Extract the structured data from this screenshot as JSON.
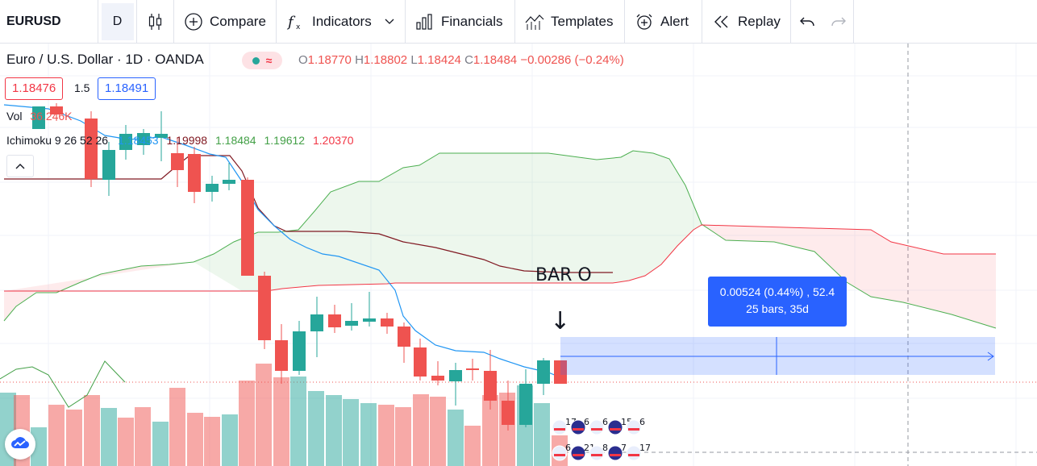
{
  "toolbar": {
    "symbol": "EURUSD",
    "interval": "D",
    "compare": "Compare",
    "indicators": "Indicators",
    "financials": "Financials",
    "templates": "Templates",
    "alert": "Alert",
    "replay": "Replay"
  },
  "legend": {
    "title": "Euro / U.S. Dollar · 1D · OANDA",
    "open_key": "O",
    "open": "1.18770",
    "high_key": "H",
    "high": "1.18802",
    "low_key": "L",
    "low": "1.18424",
    "close_key": "C",
    "close": "1.18484",
    "change": "−0.00286 (−0.24%)",
    "bid": "1.18476",
    "spread": "1.5",
    "ask": "1.18491"
  },
  "volume": {
    "label": "Vol",
    "value": "36.246K"
  },
  "ichimoku": {
    "label": "Ichimoku 9 26 52 26",
    "v1": "1.18453",
    "v2": "1.19998",
    "v3": "1.18484",
    "v4": "1.19612",
    "v5": "1.20370"
  },
  "measure": {
    "line1": "0.00524 (0.44%) , 52.4",
    "line2": "25 bars, 35d"
  },
  "annotation": {
    "text": "BAR O",
    "arrow": "↓"
  },
  "events": {
    "row1": [
      "17",
      "6",
      "6",
      "15",
      "6"
    ],
    "row2": [
      "6",
      "21",
      "8",
      "7",
      "17"
    ]
  },
  "colors": {
    "bull": "#26a69a",
    "bear": "#ef5350",
    "conversion": "#2196f3",
    "base": "#801922",
    "lagging": "#43a047",
    "spanA": "#4caf50",
    "spanB": "#f23645",
    "measure": "#2962ff"
  }
}
